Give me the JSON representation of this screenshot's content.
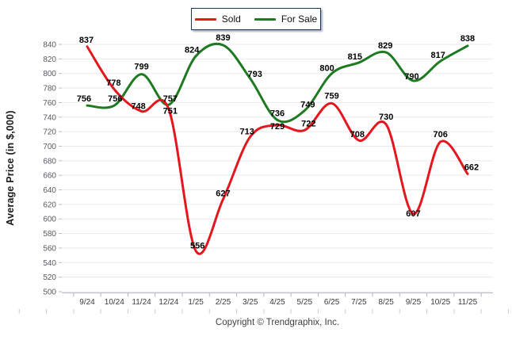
{
  "chart_data": {
    "type": "line",
    "title": "",
    "categories": [
      "9/24",
      "10/24",
      "11/24",
      "12/24",
      "1/25",
      "2/25",
      "3/25",
      "4/25",
      "5/25",
      "6/25",
      "7/25",
      "8/25",
      "9/25",
      "10/25",
      "11/25"
    ],
    "series": [
      {
        "name": "Sold",
        "color": "#e3171d",
        "values": [
          837,
          778,
          748,
          751,
          556,
          627,
          713,
          729,
          722,
          759,
          708,
          730,
          607,
          706,
          662
        ],
        "label_dx": [
          -1,
          -1,
          -4,
          2,
          2,
          0,
          -4,
          0,
          5,
          0,
          -2,
          0,
          0,
          0,
          5
        ],
        "label_dy": [
          -5,
          -5,
          -3,
          6,
          -3,
          -4,
          -3,
          5,
          -5,
          -6,
          -4,
          -6,
          3,
          -6,
          -5
        ]
      },
      {
        "name": "For Sale",
        "color": "#1d7a21",
        "values": [
          756,
          756,
          799,
          757,
          824,
          839,
          793,
          736,
          749,
          800,
          815,
          829,
          790,
          817,
          838
        ],
        "label_dx": [
          -4,
          1,
          0,
          2,
          -5,
          0,
          6,
          0,
          4,
          -6,
          -5,
          -1,
          -2,
          -3,
          0
        ],
        "label_dy": [
          -5,
          -5,
          -6,
          -4,
          -4,
          -6,
          -2,
          -5,
          -4,
          -3,
          -4,
          -5,
          -2,
          -4,
          -6
        ]
      }
    ],
    "xlabel": "",
    "ylabel": "Average Price (in $,000)",
    "ylim": [
      500,
      840
    ],
    "ytick_step": 20,
    "grid": "horizontal",
    "legend_position": "top-center",
    "line_style": "smooth"
  },
  "footer": {
    "copyright": "Copyright © Trendgraphix, Inc."
  }
}
